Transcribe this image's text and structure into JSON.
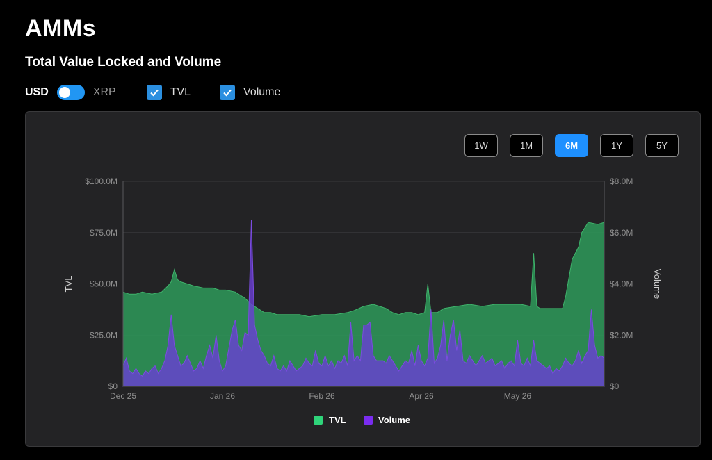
{
  "header": {
    "title": "AMMs",
    "section_title": "Total Value Locked and Volume"
  },
  "controls": {
    "currency_left": "USD",
    "currency_right": "XRP",
    "toggle_state": "USD",
    "checkbox_tvl": {
      "label": "TVL",
      "checked": true
    },
    "checkbox_volume": {
      "label": "Volume",
      "checked": true
    }
  },
  "range_buttons": [
    "1W",
    "1M",
    "6M",
    "1Y",
    "5Y"
  ],
  "active_range": "6M",
  "colors": {
    "tvl": "#2fd47a",
    "volume": "#7a2cf0",
    "active": "#1e90ff"
  },
  "chart_data": {
    "type": "area",
    "x_tick_labels": [
      "Dec 25",
      "Jan 26",
      "Feb 26",
      "Apr 26",
      "May 26"
    ],
    "x_tick_positions_day": [
      0,
      31,
      62,
      93,
      123
    ],
    "x_range_days": [
      0,
      150
    ],
    "ylabel": "TVL",
    "y2label": "Volume",
    "yticks": [
      "$0",
      "$25.0M",
      "$50.0M",
      "$75.0M",
      "$100.0M"
    ],
    "y2ticks": [
      "$0",
      "$2.0M",
      "$4.0M",
      "$6.0M",
      "$8.0M"
    ],
    "ylim": [
      0,
      100
    ],
    "y2lim": [
      0,
      8
    ],
    "grid": true,
    "legend": {
      "position": "bottom",
      "items": [
        "TVL",
        "Volume"
      ]
    },
    "series": [
      {
        "name": "TVL",
        "unit": "$M",
        "x_days": [
          0,
          2,
          4,
          6,
          9,
          12,
          14,
          15,
          16,
          17,
          18,
          20,
          22,
          25,
          28,
          30,
          32,
          35,
          38,
          40,
          42,
          44,
          46,
          48,
          50,
          55,
          58,
          62,
          66,
          70,
          72,
          75,
          78,
          80,
          82,
          84,
          86,
          88,
          90,
          92,
          94,
          95,
          96,
          98,
          100,
          104,
          108,
          112,
          116,
          120,
          124,
          127,
          128,
          129,
          130,
          134,
          137,
          138,
          140,
          142,
          143,
          145,
          148,
          150
        ],
        "values": [
          46,
          45,
          45,
          46,
          45,
          46,
          49,
          51,
          57,
          52,
          51,
          50,
          49,
          48,
          48,
          47,
          47,
          46,
          43,
          40,
          38,
          36,
          36,
          35,
          35,
          35,
          34,
          35,
          35,
          36,
          37,
          39,
          40,
          39,
          38,
          36,
          35,
          36,
          36,
          35,
          36,
          50,
          36,
          36,
          38,
          39,
          40,
          39,
          40,
          40,
          40,
          39,
          65,
          39,
          38,
          38,
          38,
          44,
          62,
          68,
          75,
          80,
          79,
          80
        ]
      },
      {
        "name": "Volume",
        "unit": "$M",
        "x_days": [
          0,
          1,
          2,
          3,
          4,
          5,
          6,
          7,
          8,
          9,
          10,
          11,
          12,
          13,
          14,
          15,
          16,
          17,
          18,
          19,
          20,
          21,
          22,
          23,
          24,
          25,
          26,
          27,
          28,
          29,
          30,
          31,
          32,
          33,
          34,
          35,
          36,
          37,
          38,
          39,
          40,
          41,
          42,
          43,
          44,
          45,
          46,
          47,
          48,
          49,
          50,
          51,
          52,
          53,
          54,
          55,
          56,
          57,
          58,
          59,
          60,
          61,
          62,
          63,
          64,
          65,
          66,
          67,
          68,
          69,
          70,
          71,
          72,
          73,
          74,
          75,
          76,
          77,
          78,
          79,
          80,
          81,
          82,
          83,
          84,
          85,
          86,
          87,
          88,
          89,
          90,
          91,
          92,
          93,
          94,
          95,
          96,
          97,
          98,
          99,
          100,
          101,
          102,
          103,
          104,
          105,
          106,
          107,
          108,
          109,
          110,
          111,
          112,
          113,
          114,
          115,
          116,
          117,
          118,
          119,
          120,
          121,
          122,
          123,
          124,
          125,
          126,
          127,
          128,
          129,
          130,
          131,
          132,
          133,
          134,
          135,
          136,
          137,
          138,
          139,
          140,
          141,
          142,
          143,
          144,
          145,
          146,
          147,
          148,
          149,
          150
        ],
        "values": [
          0.8,
          1.1,
          0.6,
          0.5,
          0.7,
          0.5,
          0.4,
          0.6,
          0.5,
          0.7,
          0.8,
          0.5,
          0.7,
          1.0,
          1.6,
          2.8,
          1.6,
          1.2,
          0.8,
          0.9,
          1.2,
          0.9,
          0.6,
          0.7,
          1.0,
          0.7,
          1.2,
          1.6,
          1.1,
          2.0,
          1.0,
          0.6,
          0.8,
          1.5,
          2.2,
          2.6,
          1.6,
          1.4,
          2.1,
          2.0,
          6.5,
          2.4,
          1.8,
          1.4,
          1.2,
          0.9,
          0.8,
          1.2,
          0.7,
          0.6,
          0.8,
          0.6,
          1.0,
          0.8,
          0.6,
          0.7,
          0.8,
          1.1,
          0.9,
          0.8,
          1.4,
          0.9,
          0.8,
          1.2,
          0.8,
          1.0,
          0.7,
          1.0,
          0.9,
          1.2,
          0.8,
          2.5,
          1.0,
          1.2,
          1.0,
          2.4,
          2.4,
          2.5,
          1.2,
          1.0,
          1.0,
          1.0,
          0.9,
          1.2,
          1.0,
          0.8,
          0.6,
          0.8,
          1.0,
          0.9,
          1.4,
          0.8,
          1.6,
          1.0,
          0.8,
          1.1,
          3.0,
          0.9,
          1.1,
          1.6,
          2.6,
          1.0,
          2.0,
          2.6,
          1.4,
          2.2,
          1.0,
          0.9,
          1.2,
          1.0,
          0.8,
          1.0,
          1.2,
          0.9,
          1.0,
          1.1,
          0.8,
          0.9,
          1.0,
          0.7,
          0.9,
          1.0,
          0.8,
          1.8,
          0.9,
          0.8,
          1.1,
          0.8,
          1.8,
          1.0,
          0.9,
          0.8,
          0.7,
          0.8,
          0.5,
          0.7,
          0.6,
          0.8,
          1.1,
          0.9,
          0.8,
          1.0,
          1.4,
          0.9,
          1.2,
          1.4,
          3.0,
          1.6,
          1.1,
          1.2,
          1.1
        ]
      }
    ]
  }
}
